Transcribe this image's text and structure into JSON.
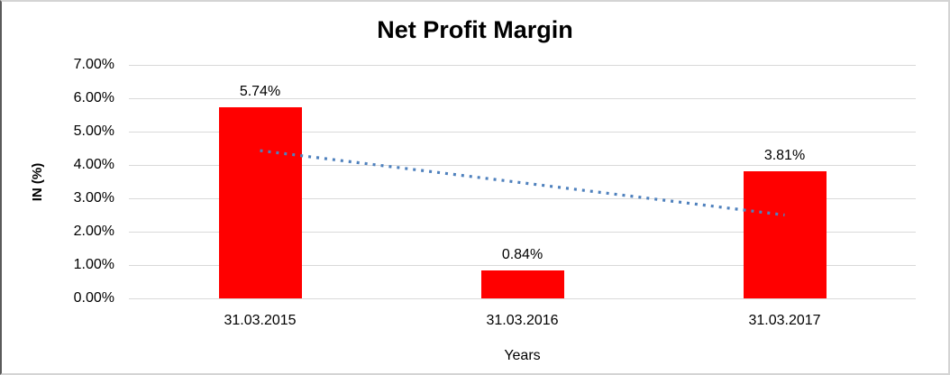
{
  "chart_data": {
    "type": "bar",
    "title": "Net Profit Margin",
    "xlabel": "Years",
    "ylabel": "IN (%)",
    "categories": [
      "31.03.2015",
      "31.03.2016",
      "31.03.2017"
    ],
    "values": [
      5.74,
      0.84,
      3.81
    ],
    "labels": [
      "5.74%",
      "0.84%",
      "3.81%"
    ],
    "yticks": [
      "7.00%",
      "6.00%",
      "5.00%",
      "4.00%",
      "3.00%",
      "2.00%",
      "1.00%",
      "0.00%"
    ],
    "ylim": [
      0,
      7
    ],
    "grid": true,
    "legend": false,
    "bar_color": "#FF0000",
    "trendline": {
      "type": "linear",
      "style": "dotted",
      "color": "#4F81BD",
      "start_value": 4.43,
      "end_value": 2.5
    }
  },
  "colors": {
    "gridline": "#D9D9D9",
    "text": "#000000",
    "border": "#D4D4D4",
    "background": "#FFFFFF"
  }
}
